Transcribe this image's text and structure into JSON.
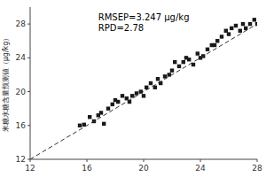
{
  "chart_data": {
    "type": "scatter",
    "ylabel": "米糖水糖含量预测値（μg/kg）",
    "annotations": [
      "RMSEP=3.247 μg/kg",
      "RPD=2.78"
    ],
    "xlim": [
      12,
      28
    ],
    "ylim": [
      12,
      30
    ],
    "xticks": [
      12,
      16,
      20,
      24,
      28
    ],
    "yticks": [
      12,
      16,
      20,
      24,
      28
    ],
    "grid": false,
    "series": [
      {
        "type": "scatter",
        "marker": "square",
        "color": "#1a1a1a",
        "x": [
          15.5,
          15.8,
          16.2,
          16.5,
          16.8,
          17.0,
          17.2,
          17.5,
          17.8,
          18.0,
          18.2,
          18.5,
          18.8,
          19.0,
          19.2,
          19.5,
          19.8,
          20.0,
          20.2,
          20.5,
          20.8,
          21.0,
          21.2,
          21.5,
          21.8,
          22.0,
          22.2,
          22.5,
          22.8,
          23.0,
          23.2,
          23.5,
          23.8,
          24.0,
          24.2,
          24.5,
          24.8,
          25.0,
          25.2,
          25.5,
          25.8,
          26.0,
          26.2,
          26.5,
          26.8,
          27.0,
          27.2,
          27.5,
          27.8,
          28.0
        ],
        "values": [
          16.0,
          16.1,
          17.0,
          16.5,
          17.2,
          17.5,
          16.2,
          18.0,
          18.5,
          19.0,
          18.8,
          19.5,
          19.2,
          18.8,
          19.5,
          19.8,
          20.0,
          19.5,
          20.5,
          21.0,
          20.5,
          21.5,
          21.0,
          21.8,
          22.0,
          22.5,
          23.5,
          23.0,
          23.5,
          24.0,
          23.8,
          23.2,
          24.5,
          24.0,
          24.2,
          25.0,
          25.5,
          25.5,
          26.0,
          26.5,
          27.2,
          26.8,
          27.5,
          27.8,
          27.2,
          28.0,
          27.5,
          28.0,
          28.5,
          28.0
        ]
      },
      {
        "type": "line",
        "line_style": "dashed",
        "color": "#333333",
        "x": [
          12,
          30
        ],
        "values": [
          12,
          30
        ]
      }
    ]
  }
}
